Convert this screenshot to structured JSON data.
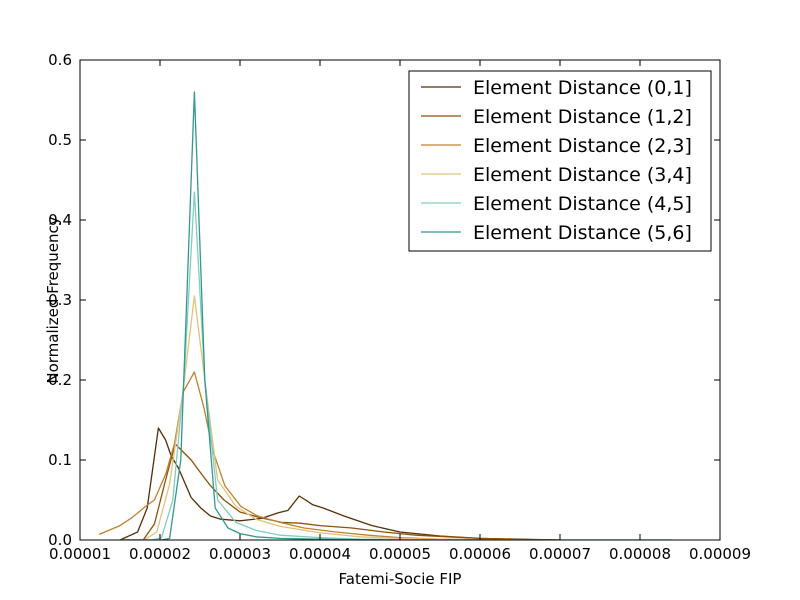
{
  "chart_data": {
    "type": "line",
    "title": "",
    "xlabel": "Fatemi-Socie FIP",
    "ylabel": "Normalized Frequency",
    "xlim": [
      1e-05,
      9e-05
    ],
    "ylim": [
      0.0,
      0.6
    ],
    "xticks": [
      1e-05,
      2e-05,
      3e-05,
      4e-05,
      5e-05,
      6e-05,
      7e-05,
      8e-05,
      9e-05
    ],
    "xtick_labels": [
      "0.00001",
      "0.00002",
      "0.00003",
      "0.00004",
      "0.00005",
      "0.00006",
      "0.00007",
      "0.00008",
      "0.00009"
    ],
    "yticks": [
      0.0,
      0.1,
      0.2,
      0.3,
      0.4,
      0.5,
      0.6
    ],
    "ytick_labels": [
      "0.0",
      "0.1",
      "0.2",
      "0.3",
      "0.4",
      "0.5",
      "0.6"
    ],
    "grid": false,
    "legend_position": "top-right",
    "series": [
      {
        "name": "Element Distance (0,1]",
        "color": "#543005",
        "x": [
          1.5e-05,
          1.72e-05,
          1.84e-05,
          1.98e-05,
          2.07e-05,
          2.14e-05,
          2.23e-05,
          2.39e-05,
          2.51e-05,
          2.63e-05,
          2.76e-05,
          3e-05,
          3.27e-05,
          3.48e-05,
          3.6e-05,
          3.74e-05,
          3.82e-05,
          3.91e-05,
          4.04e-05,
          4.3e-05,
          4.65e-05,
          5e-05,
          5.5e-05,
          6e-05,
          6.5e-05,
          7e-05
        ],
        "y": [
          0.0,
          0.01,
          0.04,
          0.14,
          0.125,
          0.105,
          0.09,
          0.053,
          0.04,
          0.03,
          0.026,
          0.024,
          0.027,
          0.034,
          0.037,
          0.055,
          0.05,
          0.044,
          0.04,
          0.03,
          0.018,
          0.01,
          0.005,
          0.002,
          0.0008,
          0.0
        ]
      },
      {
        "name": "Element Distance (1,2]",
        "color": "#8c510a",
        "x": [
          1.5e-05,
          1.79e-05,
          1.93e-05,
          2.07e-05,
          2.19e-05,
          2.39e-05,
          2.5e-05,
          2.63e-05,
          2.8e-05,
          3e-05,
          3.25e-05,
          3.52e-05,
          3.75e-05,
          4e-05,
          4.4e-05,
          4.8e-05,
          5.2e-05,
          5.6e-05,
          6e-05,
          6.5e-05,
          7e-05
        ],
        "y": [
          0.0,
          0.0,
          0.02,
          0.075,
          0.12,
          0.1,
          0.085,
          0.068,
          0.05,
          0.035,
          0.028,
          0.022,
          0.021,
          0.018,
          0.015,
          0.01,
          0.006,
          0.004,
          0.002,
          0.001,
          0.0
        ]
      },
      {
        "name": "Element Distance (2,3]",
        "color": "#bf812d",
        "x": [
          1.24e-05,
          1.5e-05,
          1.65e-05,
          1.82e-05,
          1.93e-05,
          2.07e-05,
          2.18e-05,
          2.29e-05,
          2.43e-05,
          2.55e-05,
          2.66e-05,
          2.81e-05,
          3.01e-05,
          3.22e-05,
          3.5e-05,
          3.8e-05,
          4.2e-05,
          4.6e-05,
          5e-05,
          5.5e-05,
          6e-05,
          6.5e-05
        ],
        "y": [
          0.007,
          0.018,
          0.028,
          0.042,
          0.05,
          0.082,
          0.12,
          0.185,
          0.21,
          0.165,
          0.112,
          0.068,
          0.042,
          0.03,
          0.022,
          0.015,
          0.01,
          0.006,
          0.003,
          0.001,
          0.0005,
          0.0
        ]
      },
      {
        "name": "Element Distance (3,4]",
        "color": "#dfc27d",
        "x": [
          1.5e-05,
          1.8e-05,
          1.96e-05,
          2.12e-05,
          2.28e-05,
          2.43e-05,
          2.56e-05,
          2.72e-05,
          2.95e-05,
          3.2e-05,
          3.5e-05,
          4e-05,
          4.5e-05,
          5e-05,
          5.5e-05,
          6e-05
        ],
        "y": [
          0.0,
          0.0,
          0.01,
          0.07,
          0.18,
          0.305,
          0.2,
          0.075,
          0.042,
          0.026,
          0.017,
          0.009,
          0.004,
          0.002,
          0.001,
          0.0
        ]
      },
      {
        "name": "Element Distance (4,5]",
        "color": "#80cdc1",
        "x": [
          1.5e-05,
          1.9e-05,
          2.02e-05,
          2.16e-05,
          2.3e-05,
          2.43e-05,
          2.56e-05,
          2.72e-05,
          2.95e-05,
          3.2e-05,
          3.5e-05,
          4e-05,
          4.5e-05,
          5e-05,
          5.5e-05,
          6e-05,
          7e-05
        ],
        "y": [
          0.0,
          0.0,
          0.003,
          0.05,
          0.2,
          0.435,
          0.2,
          0.05,
          0.022,
          0.012,
          0.006,
          0.003,
          0.001,
          0.0005,
          0.0,
          0.0,
          0.0
        ]
      },
      {
        "name": "Element Distance (5,6]",
        "color": "#35978f",
        "x": [
          1.5e-05,
          2.02e-05,
          2.12e-05,
          2.26e-05,
          2.43e-05,
          2.56e-05,
          2.69e-05,
          2.85e-05,
          3e-05,
          3.2e-05,
          3.5e-05,
          4e-05,
          4.5e-05,
          5e-05,
          6e-05,
          7e-05,
          8.4e-05
        ],
        "y": [
          0.0,
          0.0,
          0.002,
          0.1,
          0.56,
          0.2,
          0.04,
          0.015,
          0.008,
          0.004,
          0.002,
          0.001,
          0.0005,
          0.0,
          0.0,
          0.0,
          0.0
        ]
      }
    ]
  }
}
